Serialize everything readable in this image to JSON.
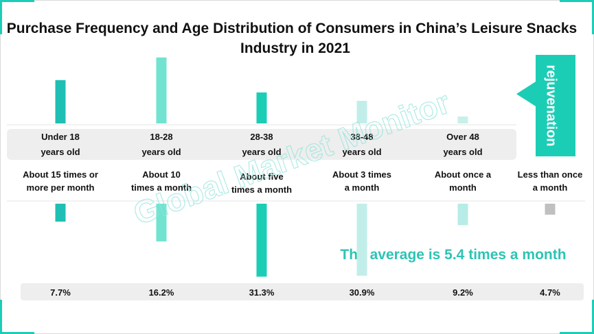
{
  "chart_data": {
    "type": "bar",
    "title": "Purchase Frequency and Age Distribution of Consumers in China’s Leisure Snacks",
    "title_line2": "Industry in 2021",
    "age_groups": [
      [
        "Under 18",
        "years old"
      ],
      [
        "18-28",
        "years old"
      ],
      [
        "28-38",
        "years old"
      ],
      [
        "38-48",
        "years old"
      ],
      [
        "Over 48",
        "years old"
      ]
    ],
    "age_values": [
      18.6,
      28.3,
      13.3,
      9.7,
      3.0
    ],
    "age_colors": [
      "#20bfb3",
      "#72e3d1",
      "#1ccdb6",
      "#c2eee9",
      "#c8f0ea"
    ],
    "categories": [
      [
        "About 15 times or",
        "more per month"
      ],
      [
        "About 10",
        "times a month"
      ],
      [
        "About five",
        "times a month"
      ],
      [
        "About 3 times",
        "a month"
      ],
      [
        "About once a",
        "month"
      ],
      [
        "Less than once",
        "a month"
      ]
    ],
    "values": [
      7.7,
      16.2,
      31.3,
      30.9,
      9.2,
      4.7
    ],
    "value_labels": [
      "7.7%",
      "16.2%",
      "31.3%",
      "30.9%",
      "9.2%",
      "4.7%"
    ],
    "colors": [
      "#20bfb3",
      "#72e3d1",
      "#1ccdb6",
      "#c2eee9",
      "#b8ece6",
      "#c0c0c0"
    ],
    "annotation": "The average is 5.4 times a month",
    "arrow_label": "rejuvenation",
    "watermark": "Global Market Monitor"
  }
}
